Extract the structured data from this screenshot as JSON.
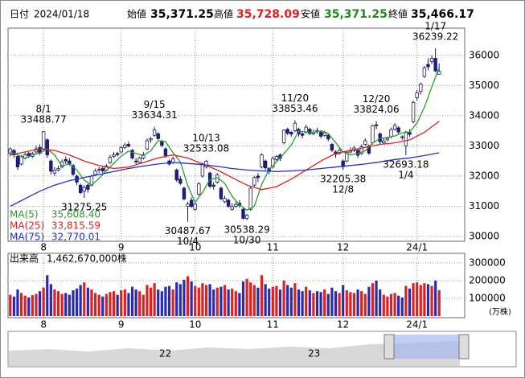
{
  "header": {
    "date_label": "日付",
    "date": "2024/01/18",
    "open_label": "始値",
    "open": "35,371.25",
    "high_label": "高値",
    "high": "35,728.09",
    "low_label": "安値",
    "low": "35,371.25",
    "close_label": "終値",
    "close": "35,466.17"
  },
  "chart_data": {
    "type": "candlestick",
    "up_color": "#ffffff",
    "down_color": "#1c1c8a",
    "grid": true,
    "xlim": [
      -0.6,
      122.9
    ],
    "ylim": [
      29840,
      36900
    ],
    "yticks": [
      30000,
      31000,
      32000,
      33000,
      34000,
      35000,
      36000
    ],
    "xticks": [
      {
        "value": 9,
        "label": "8"
      },
      {
        "value": 30,
        "label": "9"
      },
      {
        "value": 50,
        "label": "10"
      },
      {
        "value": 71,
        "label": "11"
      },
      {
        "value": 90,
        "label": "12"
      },
      {
        "value": 110,
        "label": "24/1"
      }
    ],
    "candles": [
      [
        32750,
        32950,
        32650,
        32900
      ],
      [
        32850,
        32900,
        32600,
        32700
      ],
      [
        32650,
        32700,
        32200,
        32300
      ],
      [
        32400,
        32700,
        32350,
        32650
      ],
      [
        32600,
        32780,
        32550,
        32700
      ],
      [
        32750,
        32800,
        32600,
        32680
      ],
      [
        32650,
        32800,
        32600,
        32750
      ],
      [
        32800,
        33000,
        32750,
        32900
      ],
      [
        32950,
        33050,
        32700,
        32760
      ],
      [
        32900,
        33488.77,
        32850,
        33470
      ],
      [
        33200,
        33250,
        32600,
        32700
      ],
      [
        32500,
        32550,
        32050,
        32160
      ],
      [
        32100,
        32300,
        32000,
        32190
      ],
      [
        32200,
        32350,
        32150,
        32250
      ],
      [
        32300,
        32550,
        32250,
        32470
      ],
      [
        32550,
        32650,
        32400,
        32500
      ],
      [
        32500,
        32600,
        32350,
        32400
      ],
      [
        32350,
        32400,
        32000,
        32060
      ],
      [
        32000,
        32050,
        31700,
        31800
      ],
      [
        31700,
        31750,
        31400,
        31450
      ],
      [
        31500,
        31700,
        31275.25,
        31620
      ],
      [
        31700,
        31750,
        31450,
        31560
      ],
      [
        31700,
        32050,
        31650,
        32000
      ],
      [
        32050,
        32250,
        32000,
        32170
      ],
      [
        32200,
        32300,
        32100,
        32230
      ],
      [
        32250,
        32300,
        32100,
        32170
      ],
      [
        32200,
        32400,
        32150,
        32330
      ],
      [
        32450,
        32700,
        32400,
        32620
      ],
      [
        32650,
        32800,
        32600,
        32700
      ],
      [
        32750,
        32800,
        32650,
        32710
      ],
      [
        32800,
        33000,
        32750,
        32940
      ],
      [
        32950,
        33100,
        32900,
        33030
      ],
      [
        33050,
        33150,
        32950,
        32990
      ],
      [
        32850,
        32900,
        32550,
        32600
      ],
      [
        32500,
        32600,
        32400,
        32470
      ],
      [
        32450,
        32650,
        32400,
        32600
      ],
      [
        32600,
        32800,
        32550,
        32710
      ],
      [
        32900,
        33250,
        32850,
        33170
      ],
      [
        33200,
        33300,
        33100,
        33240
      ],
      [
        33350,
        33634.31,
        33300,
        33530
      ],
      [
        33400,
        33450,
        33200,
        33240
      ],
      [
        33150,
        33200,
        32950,
        33020
      ],
      [
        32900,
        32950,
        32600,
        32680
      ],
      [
        32500,
        32550,
        32350,
        32400
      ],
      [
        32450,
        32650,
        32400,
        32570
      ],
      [
        32200,
        32250,
        31800,
        31870
      ],
      [
        31900,
        32000,
        31700,
        31760
      ],
      [
        31600,
        31650,
        31200,
        31240
      ],
      [
        31000,
        31150,
        30487.67,
        31070
      ],
      [
        31200,
        31300,
        30950,
        30990
      ],
      [
        30900,
        31150,
        30850,
        31070
      ],
      [
        31400,
        31800,
        31350,
        31740
      ],
      [
        32000,
        32450,
        31950,
        32400
      ],
      [
        32300,
        32533.08,
        32250,
        32490
      ],
      [
        32100,
        32150,
        31600,
        31660
      ],
      [
        31700,
        31800,
        31550,
        31660
      ],
      [
        31800,
        32100,
        31750,
        32040
      ],
      [
        31600,
        31650,
        31200,
        31250
      ],
      [
        31150,
        31350,
        31100,
        31260
      ],
      [
        31200,
        31250,
        30950,
        31000
      ],
      [
        30900,
        31100,
        30850,
        30990
      ],
      [
        31000,
        31150,
        30950,
        31060
      ],
      [
        31100,
        31200,
        30950,
        31030
      ],
      [
        30900,
        30950,
        30550,
        30600
      ],
      [
        30600,
        30750,
        30538.29,
        30700
      ],
      [
        30900,
        31650,
        30850,
        31600
      ],
      [
        31700,
        32000,
        31650,
        31950
      ],
      [
        32000,
        32100,
        31800,
        31950
      ],
      [
        32300,
        32750,
        32250,
        32700
      ],
      [
        32500,
        32550,
        32200,
        32270
      ],
      [
        32250,
        32300,
        32050,
        32160
      ],
      [
        32300,
        32650,
        32250,
        32580
      ],
      [
        32550,
        32700,
        32500,
        32650
      ],
      [
        32700,
        32750,
        32500,
        32590
      ],
      [
        33100,
        33550,
        33050,
        33520
      ],
      [
        33550,
        33600,
        33350,
        33420
      ],
      [
        33450,
        33500,
        33300,
        33390
      ],
      [
        33500,
        33853.46,
        33450,
        33750
      ],
      [
        33550,
        33600,
        33300,
        33390
      ],
      [
        33400,
        33450,
        33250,
        33350
      ],
      [
        33450,
        33700,
        33400,
        33620
      ],
      [
        33550,
        33600,
        33350,
        33410
      ],
      [
        33400,
        33550,
        33350,
        33450
      ],
      [
        33500,
        33600,
        33400,
        33490
      ],
      [
        33450,
        33500,
        33250,
        33320
      ],
      [
        33350,
        33500,
        33300,
        33430
      ],
      [
        33350,
        33400,
        33150,
        33230
      ],
      [
        33050,
        33100,
        32800,
        32860
      ],
      [
        32800,
        32850,
        32600,
        32720
      ],
      [
        32750,
        32950,
        32700,
        32850
      ],
      [
        32500,
        32550,
        32205.38,
        32310
      ],
      [
        32500,
        32850,
        32450,
        32790
      ],
      [
        32800,
        32950,
        32750,
        32840
      ],
      [
        32850,
        33000,
        32800,
        32930
      ],
      [
        32850,
        32900,
        32600,
        32690
      ],
      [
        32750,
        33050,
        32700,
        32970
      ],
      [
        33050,
        33250,
        33000,
        33170
      ],
      [
        33000,
        33050,
        32700,
        32760
      ],
      [
        33100,
        33700,
        33050,
        33670
      ],
      [
        33700,
        33824.06,
        33550,
        33670
      ],
      [
        33400,
        33450,
        33050,
        33140
      ],
      [
        33100,
        33250,
        33050,
        33160
      ],
      [
        33200,
        33300,
        33150,
        33250
      ],
      [
        33300,
        33600,
        33250,
        33540
      ],
      [
        33550,
        33750,
        33500,
        33680
      ],
      [
        33600,
        33650,
        33400,
        33460
      ],
      [
        33300,
        33350,
        33200,
        33290
      ],
      [
        33000,
        33500,
        32693.18,
        33460
      ],
      [
        33450,
        33550,
        33300,
        33380
      ],
      [
        33800,
        34500,
        33750,
        34440
      ],
      [
        34600,
        34850,
        34500,
        34760
      ],
      [
        34800,
        35100,
        34700,
        35050
      ],
      [
        35300,
        35650,
        35250,
        35580
      ],
      [
        35700,
        35900,
        35500,
        35620
      ],
      [
        35800,
        36000,
        35700,
        35900
      ],
      [
        35900,
        36239.22,
        35450,
        35480
      ],
      [
        35371.25,
        35728.09,
        35371.25,
        35466.17
      ]
    ],
    "series": [
      {
        "name": "MA(5)",
        "legend_value": "35,608.40",
        "color": "#2a9d2a",
        "x": [
          0,
          2,
          4,
          6,
          8,
          10,
          12,
          14,
          16,
          18,
          20,
          22,
          24,
          26,
          28,
          30,
          32,
          34,
          36,
          38,
          40,
          42,
          44,
          46,
          48,
          50,
          52,
          54,
          56,
          58,
          60,
          62,
          64,
          66,
          68,
          70,
          72,
          74,
          76,
          78,
          80,
          82,
          84,
          86,
          88,
          90,
          92,
          94,
          96,
          98,
          100,
          102,
          104,
          106,
          108,
          110,
          112,
          114,
          116
        ],
        "values": [
          32800,
          32700,
          32580,
          32700,
          32760,
          32900,
          32700,
          32340,
          32400,
          32200,
          31870,
          31700,
          31920,
          32180,
          32420,
          32660,
          32830,
          32750,
          32680,
          32840,
          33170,
          33140,
          32780,
          32470,
          31690,
          31130,
          31460,
          31880,
          31950,
          31760,
          31330,
          31050,
          30870,
          31000,
          31720,
          32220,
          32470,
          32740,
          33030,
          33490,
          33460,
          33440,
          33500,
          33410,
          33110,
          32800,
          32700,
          32750,
          32840,
          33090,
          33250,
          33280,
          33330,
          33430,
          33460,
          33760,
          34280,
          34950,
          35608
        ]
      },
      {
        "name": "MA(25)",
        "legend_value": "33,815.59",
        "color": "#e02020",
        "x": [
          0,
          4,
          8,
          12,
          16,
          20,
          24,
          28,
          32,
          36,
          40,
          44,
          48,
          52,
          56,
          60,
          64,
          68,
          72,
          76,
          80,
          84,
          88,
          92,
          96,
          100,
          104,
          108,
          112,
          116
        ],
        "values": [
          32700,
          32800,
          32900,
          32850,
          32700,
          32500,
          32350,
          32250,
          32300,
          32450,
          32600,
          32700,
          32600,
          32400,
          32200,
          31950,
          31700,
          31550,
          31650,
          31900,
          32200,
          32500,
          32750,
          32850,
          32950,
          33050,
          33100,
          33200,
          33450,
          33816
        ]
      },
      {
        "name": "MA(75)",
        "legend_value": "32,770.01",
        "color": "#2030d0",
        "x": [
          0,
          4,
          8,
          12,
          16,
          20,
          24,
          28,
          32,
          36,
          40,
          44,
          48,
          52,
          56,
          60,
          64,
          68,
          72,
          76,
          80,
          84,
          88,
          92,
          96,
          100,
          104,
          108,
          112,
          116
        ],
        "values": [
          31000,
          31250,
          31500,
          31700,
          31850,
          31950,
          32050,
          32150,
          32250,
          32330,
          32400,
          32450,
          32420,
          32380,
          32320,
          32250,
          32200,
          32170,
          32150,
          32170,
          32200,
          32250,
          32300,
          32350,
          32400,
          32470,
          32550,
          32600,
          32680,
          32770
        ]
      }
    ],
    "annotations": [
      {
        "date": "8/1",
        "value": 33488.77,
        "index": 9,
        "side": "above"
      },
      {
        "value": 31275.25,
        "index": 20,
        "side": "below"
      },
      {
        "date": "9/15",
        "value": 33634.31,
        "index": 39,
        "side": "above"
      },
      {
        "value": 30487.67,
        "date": "10/4",
        "index": 48,
        "side": "below"
      },
      {
        "date": "10/13",
        "value": 32533.08,
        "index": 53,
        "side": "above"
      },
      {
        "value": 30538.29,
        "date": "10/30",
        "index": 64,
        "side": "below"
      },
      {
        "date": "11/20",
        "value": 33853.46,
        "index": 77,
        "side": "above"
      },
      {
        "value": 32205.38,
        "date": "12/8",
        "index": 90,
        "side": "below"
      },
      {
        "date": "12/20",
        "value": 33824.06,
        "index": 99,
        "side": "above"
      },
      {
        "value": 32693.18,
        "date": "1/4",
        "index": 107,
        "side": "below"
      },
      {
        "date": "1/17",
        "value": 36239.22,
        "index": 115,
        "side": "above"
      }
    ],
    "volume": {
      "type": "bar",
      "title": "出来高",
      "total": "1,462,670,000株",
      "unit": "(万株)",
      "up_color": "#e02020",
      "down_color": "#2a2ab0",
      "ylim": [
        0,
        340000
      ],
      "yticks": [
        100000,
        200000,
        300000
      ],
      "values": [
        120000,
        110000,
        150000,
        130000,
        115000,
        105000,
        118000,
        125000,
        140000,
        160000,
        230000,
        180000,
        150000,
        140000,
        125000,
        130000,
        120000,
        145000,
        155000,
        175000,
        190000,
        160000,
        150000,
        130000,
        120000,
        110000,
        125000,
        135000,
        140000,
        120000,
        145000,
        150000,
        130000,
        165000,
        150000,
        140000,
        120000,
        175000,
        160000,
        185000,
        150000,
        140000,
        165000,
        170000,
        150000,
        190000,
        180000,
        205000,
        225000,
        195000,
        170000,
        160000,
        185000,
        175000,
        180000,
        150000,
        160000,
        165000,
        175000,
        150000,
        155000,
        140000,
        130000,
        195000,
        210000,
        190000,
        175000,
        160000,
        230000,
        180000,
        155000,
        165000,
        170000,
        150000,
        200000,
        175000,
        160000,
        185000,
        150000,
        140000,
        165000,
        145000,
        130000,
        140000,
        135000,
        150000,
        125000,
        160000,
        140000,
        130000,
        175000,
        145000,
        135000,
        130000,
        150000,
        140000,
        125000,
        165000,
        185000,
        200000,
        150000,
        120000,
        110000,
        125000,
        130000,
        115000,
        105000,
        170000,
        155000,
        185000,
        190000,
        175000,
        185000,
        180000,
        170000,
        200000,
        146267
      ]
    }
  },
  "navigator": {
    "labels": [
      "22",
      "23"
    ]
  }
}
